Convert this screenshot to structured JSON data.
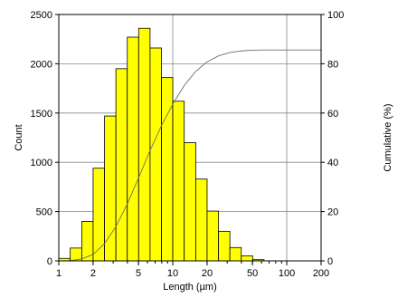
{
  "chart_data": {
    "type": "bar",
    "xscale": "log",
    "xlabel": "Length (µm)",
    "ylabel": "Count",
    "y2label": "Cumulative (%)",
    "xlim": [
      1,
      200
    ],
    "ylim": [
      0,
      2500
    ],
    "y2lim": [
      0,
      100
    ],
    "xticks": [
      "1",
      "2",
      "5",
      "10",
      "20",
      "50",
      "100",
      "200"
    ],
    "yticks": [
      "0",
      "500",
      "1000",
      "1500",
      "2000",
      "2500"
    ],
    "y2ticks": [
      "0",
      "20",
      "40",
      "60",
      "80",
      "100"
    ],
    "grid": true,
    "colors": {
      "bar": "#ffff00",
      "bar_edge": "#000000",
      "cumulative": "#707070",
      "grid": "#888888"
    },
    "bins": [
      {
        "x0": 1.0,
        "x1": 1.26,
        "count": 25
      },
      {
        "x0": 1.26,
        "x1": 1.59,
        "count": 130
      },
      {
        "x0": 1.59,
        "x1": 2.0,
        "count": 400
      },
      {
        "x0": 2.0,
        "x1": 2.52,
        "count": 940
      },
      {
        "x0": 2.52,
        "x1": 3.17,
        "count": 1470
      },
      {
        "x0": 3.17,
        "x1": 3.99,
        "count": 1950
      },
      {
        "x0": 3.99,
        "x1": 5.02,
        "count": 2270
      },
      {
        "x0": 5.02,
        "x1": 6.32,
        "count": 2360
      },
      {
        "x0": 6.32,
        "x1": 7.96,
        "count": 2160
      },
      {
        "x0": 7.96,
        "x1": 10.0,
        "count": 1860
      },
      {
        "x0": 10.0,
        "x1": 12.6,
        "count": 1620
      },
      {
        "x0": 12.6,
        "x1": 15.9,
        "count": 1200
      },
      {
        "x0": 15.9,
        "x1": 20.0,
        "count": 830
      },
      {
        "x0": 20.0,
        "x1": 25.2,
        "count": 505
      },
      {
        "x0": 25.2,
        "x1": 31.7,
        "count": 300
      },
      {
        "x0": 31.7,
        "x1": 39.9,
        "count": 135
      },
      {
        "x0": 39.9,
        "x1": 50.2,
        "count": 50
      },
      {
        "x0": 50.2,
        "x1": 63.2,
        "count": 12
      }
    ],
    "cumulative": {
      "x": [
        1.0,
        1.26,
        1.59,
        2.0,
        2.52,
        3.17,
        3.99,
        5.02,
        6.32,
        7.96,
        10.0,
        12.6,
        15.9,
        20.0,
        25.2,
        31.7,
        39.9,
        50.2,
        63.2,
        200
      ],
      "y": [
        0,
        0.1,
        0.8,
        2.6,
        7.0,
        13.9,
        23.1,
        33.8,
        44.8,
        54.9,
        63.6,
        71.2,
        76.9,
        80.8,
        83.2,
        84.6,
        85.2,
        85.5,
        85.6,
        85.6
      ]
    }
  }
}
